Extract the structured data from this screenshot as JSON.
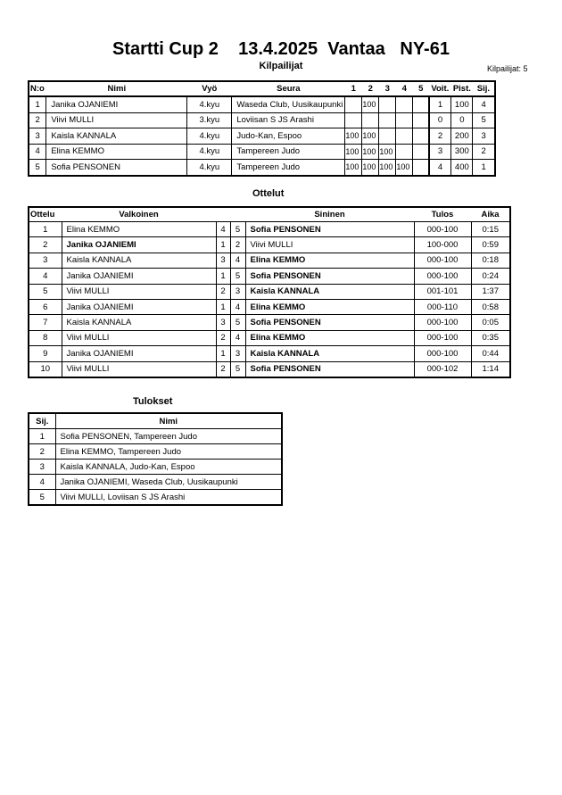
{
  "title": "Startti Cup 2    13.4.2025  Vantaa   NY-61",
  "competitors_heading": "Kilpailijat",
  "competitors_count": "Kilpailijat: 5",
  "competitors": {
    "headers": [
      "N:o",
      "Nimi",
      "Vyö",
      "Seura",
      "1",
      "2",
      "3",
      "4",
      "5",
      "Voit.",
      "Pist.",
      "Sij."
    ],
    "rows": [
      {
        "no": "1",
        "name": "Janika OJANIEMI",
        "belt": "4.kyu",
        "club": "Waseda Club, Uusikaupunki",
        "scores": [
          "",
          "100",
          "",
          "",
          ""
        ],
        "wins": "1",
        "points": "100",
        "rank": "4"
      },
      {
        "no": "2",
        "name": "Viivi MULLI",
        "belt": "3.kyu",
        "club": "Loviisan S JS Arashi",
        "scores": [
          "",
          "",
          "",
          "",
          ""
        ],
        "wins": "0",
        "points": "0",
        "rank": "5"
      },
      {
        "no": "3",
        "name": "Kaisla KANNALA",
        "belt": "4.kyu",
        "club": "Judo-Kan, Espoo",
        "scores": [
          "100",
          "100",
          "",
          "",
          ""
        ],
        "wins": "2",
        "points": "200",
        "rank": "3"
      },
      {
        "no": "4",
        "name": "Elina KEMMO",
        "belt": "4.kyu",
        "club": "Tampereen Judo",
        "scores": [
          "100",
          "100",
          "100",
          "",
          ""
        ],
        "wins": "3",
        "points": "300",
        "rank": "2"
      },
      {
        "no": "5",
        "name": "Sofia PENSONEN",
        "belt": "4.kyu",
        "club": "Tampereen Judo",
        "scores": [
          "100",
          "100",
          "100",
          "100",
          ""
        ],
        "wins": "4",
        "points": "400",
        "rank": "1"
      }
    ]
  },
  "matches_heading": "Ottelut",
  "matches": {
    "headers": [
      "Ottelu",
      "Valkoinen",
      "Sininen",
      "Tulos",
      "Aika"
    ],
    "rows": [
      {
        "no": "1",
        "white": "Elina KEMMO",
        "wn": "4",
        "bn": "5",
        "blue": "Sofia PENSONEN",
        "result": "000-100",
        "time": "0:15",
        "winner": "blue"
      },
      {
        "no": "2",
        "white": "Janika OJANIEMI",
        "wn": "1",
        "bn": "2",
        "blue": "Viivi MULLI",
        "result": "100-000",
        "time": "0:59",
        "winner": "white"
      },
      {
        "no": "3",
        "white": "Kaisla KANNALA",
        "wn": "3",
        "bn": "4",
        "blue": "Elina KEMMO",
        "result": "000-100",
        "time": "0:18",
        "winner": "blue"
      },
      {
        "no": "4",
        "white": "Janika OJANIEMI",
        "wn": "1",
        "bn": "5",
        "blue": "Sofia PENSONEN",
        "result": "000-100",
        "time": "0:24",
        "winner": "blue"
      },
      {
        "no": "5",
        "white": "Viivi MULLI",
        "wn": "2",
        "bn": "3",
        "blue": "Kaisla KANNALA",
        "result": "001-101",
        "time": "1:37",
        "winner": "blue"
      },
      {
        "no": "6",
        "white": "Janika OJANIEMI",
        "wn": "1",
        "bn": "4",
        "blue": "Elina KEMMO",
        "result": "000-110",
        "time": "0:58",
        "winner": "blue"
      },
      {
        "no": "7",
        "white": "Kaisla KANNALA",
        "wn": "3",
        "bn": "5",
        "blue": "Sofia PENSONEN",
        "result": "000-100",
        "time": "0:05",
        "winner": "blue"
      },
      {
        "no": "8",
        "white": "Viivi MULLI",
        "wn": "2",
        "bn": "4",
        "blue": "Elina KEMMO",
        "result": "000-100",
        "time": "0:35",
        "winner": "blue"
      },
      {
        "no": "9",
        "white": "Janika OJANIEMI",
        "wn": "1",
        "bn": "3",
        "blue": "Kaisla KANNALA",
        "result": "000-100",
        "time": "0:44",
        "winner": "blue"
      },
      {
        "no": "10",
        "white": "Viivi MULLI",
        "wn": "2",
        "bn": "5",
        "blue": "Sofia PENSONEN",
        "result": "000-102",
        "time": "1:14",
        "winner": "blue"
      }
    ]
  },
  "results_heading": "Tulokset",
  "results": {
    "headers": [
      "Sij.",
      "Nimi"
    ],
    "rows": [
      {
        "rank": "1",
        "name": "Sofia PENSONEN, Tampereen Judo"
      },
      {
        "rank": "2",
        "name": "Elina KEMMO, Tampereen Judo"
      },
      {
        "rank": "3",
        "name": "Kaisla KANNALA, Judo-Kan, Espoo"
      },
      {
        "rank": "4",
        "name": "Janika OJANIEMI, Waseda Club, Uusikaupunki"
      },
      {
        "rank": "5",
        "name": "Viivi MULLI, Loviisan S JS Arashi"
      }
    ]
  }
}
